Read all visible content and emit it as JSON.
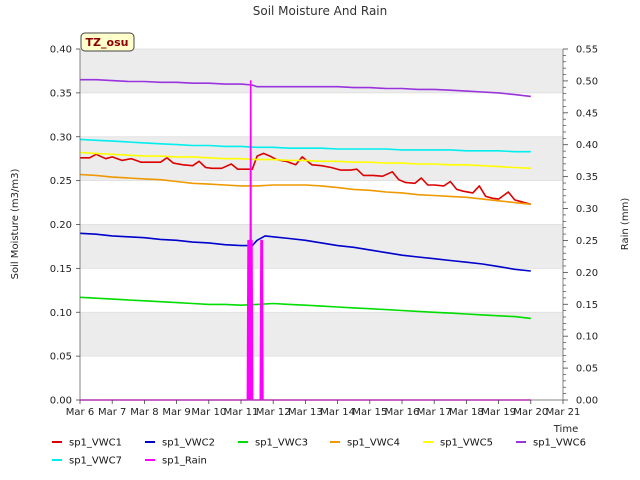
{
  "chart_data": {
    "type": "line",
    "title": "Soil Moisture And Rain",
    "badge": "TZ_osu",
    "xlabel": "Time",
    "ylabel": "Soil Moisture (m3/m3)",
    "y2label": "Rain (mm)",
    "xlim": [
      6,
      21
    ],
    "ylim": [
      0,
      0.4
    ],
    "y2lim": [
      0,
      0.55
    ],
    "x_ticks": [
      6,
      7,
      8,
      9,
      10,
      11,
      12,
      13,
      14,
      15,
      16,
      17,
      18,
      19,
      20,
      21
    ],
    "x_tick_labels": [
      "Mar 6",
      "Mar 7",
      "Mar 8",
      "Mar 9",
      "Mar 10",
      "Mar 11",
      "Mar 12",
      "Mar 13",
      "Mar 14",
      "Mar 15",
      "Mar 16",
      "Mar 17",
      "Mar 18",
      "Mar 19",
      "Mar 20",
      "Mar 21"
    ],
    "y_ticks": [
      0.0,
      0.05,
      0.1,
      0.15,
      0.2,
      0.25,
      0.3,
      0.35,
      0.4
    ],
    "y_tick_labels": [
      "0.00",
      "0.05",
      "0.10",
      "0.15",
      "0.20",
      "0.25",
      "0.30",
      "0.35",
      "0.40"
    ],
    "y2_ticks": [
      0.0,
      0.05,
      0.1,
      0.15,
      0.2,
      0.25,
      0.3,
      0.35,
      0.4,
      0.45,
      0.5,
      0.55
    ],
    "y2_tick_labels": [
      "0.00",
      "0.05",
      "0.10",
      "0.15",
      "0.20",
      "0.25",
      "0.30",
      "0.35",
      "0.40",
      "0.45",
      "0.50",
      "0.55"
    ],
    "grid": "horizontal bands",
    "legend_position": "bottom",
    "series": [
      {
        "name": "sp1_VWC1",
        "color": "#dd0000",
        "axis": "left",
        "x": [
          6.0,
          6.3,
          6.5,
          6.8,
          7.0,
          7.3,
          7.6,
          7.9,
          8.2,
          8.5,
          8.7,
          8.9,
          9.2,
          9.5,
          9.7,
          9.9,
          10.1,
          10.4,
          10.7,
          10.9,
          11.1,
          11.35,
          11.5,
          11.7,
          11.9,
          12.1,
          12.4,
          12.7,
          12.9,
          13.2,
          13.5,
          13.8,
          14.1,
          14.4,
          14.6,
          14.8,
          15.1,
          15.4,
          15.7,
          15.9,
          16.1,
          16.4,
          16.6,
          16.8,
          17.0,
          17.3,
          17.5,
          17.7,
          17.9,
          18.2,
          18.4,
          18.6,
          18.8,
          19.0,
          19.3,
          19.5,
          19.7,
          19.9,
          20.0
        ],
        "y": [
          0.276,
          0.276,
          0.28,
          0.275,
          0.277,
          0.273,
          0.275,
          0.271,
          0.271,
          0.271,
          0.276,
          0.27,
          0.268,
          0.267,
          0.272,
          0.265,
          0.264,
          0.264,
          0.269,
          0.263,
          0.263,
          0.263,
          0.278,
          0.281,
          0.278,
          0.274,
          0.272,
          0.268,
          0.277,
          0.268,
          0.267,
          0.265,
          0.262,
          0.262,
          0.263,
          0.256,
          0.256,
          0.255,
          0.26,
          0.251,
          0.248,
          0.247,
          0.253,
          0.245,
          0.245,
          0.244,
          0.249,
          0.24,
          0.238,
          0.236,
          0.244,
          0.232,
          0.23,
          0.229,
          0.237,
          0.228,
          0.226,
          0.224,
          0.223
        ]
      },
      {
        "name": "sp1_VWC2",
        "color": "#0000cc",
        "axis": "left",
        "x": [
          6.0,
          6.5,
          7.0,
          7.5,
          8.0,
          8.5,
          9.0,
          9.5,
          10.0,
          10.5,
          11.0,
          11.35,
          11.5,
          11.75,
          12.0,
          12.5,
          13.0,
          13.5,
          14.0,
          14.5,
          15.0,
          15.5,
          16.0,
          16.5,
          17.0,
          17.5,
          18.0,
          18.5,
          19.0,
          19.5,
          20.0
        ],
        "y": [
          0.19,
          0.189,
          0.187,
          0.186,
          0.185,
          0.183,
          0.182,
          0.18,
          0.179,
          0.177,
          0.176,
          0.176,
          0.182,
          0.187,
          0.186,
          0.184,
          0.182,
          0.179,
          0.176,
          0.174,
          0.171,
          0.168,
          0.165,
          0.163,
          0.161,
          0.159,
          0.157,
          0.155,
          0.152,
          0.149,
          0.147
        ]
      },
      {
        "name": "sp1_VWC3",
        "color": "#00dd00",
        "axis": "left",
        "x": [
          6.0,
          6.5,
          7.0,
          7.5,
          8.0,
          8.5,
          9.0,
          9.5,
          10.0,
          10.5,
          11.0,
          11.5,
          12.0,
          12.5,
          13.0,
          13.5,
          14.0,
          14.5,
          15.0,
          15.5,
          16.0,
          16.5,
          17.0,
          17.5,
          18.0,
          18.5,
          19.0,
          19.5,
          20.0
        ],
        "y": [
          0.117,
          0.116,
          0.115,
          0.114,
          0.113,
          0.112,
          0.111,
          0.11,
          0.109,
          0.109,
          0.108,
          0.109,
          0.11,
          0.109,
          0.108,
          0.107,
          0.106,
          0.105,
          0.104,
          0.103,
          0.102,
          0.101,
          0.1,
          0.099,
          0.098,
          0.097,
          0.096,
          0.095,
          0.093
        ]
      },
      {
        "name": "sp1_VWC4",
        "color": "#ee9900",
        "axis": "left",
        "x": [
          6.0,
          6.5,
          7.0,
          7.5,
          8.0,
          8.5,
          9.0,
          9.5,
          10.0,
          10.5,
          11.0,
          11.5,
          12.0,
          12.5,
          13.0,
          13.5,
          14.0,
          14.5,
          15.0,
          15.5,
          16.0,
          16.5,
          17.0,
          17.5,
          18.0,
          18.5,
          19.0,
          19.5,
          20.0
        ],
        "y": [
          0.257,
          0.256,
          0.254,
          0.253,
          0.252,
          0.251,
          0.249,
          0.247,
          0.246,
          0.245,
          0.244,
          0.244,
          0.245,
          0.245,
          0.245,
          0.244,
          0.242,
          0.24,
          0.239,
          0.237,
          0.236,
          0.234,
          0.233,
          0.232,
          0.231,
          0.229,
          0.227,
          0.225,
          0.223
        ]
      },
      {
        "name": "sp1_VWC5",
        "color": "#ffff00",
        "axis": "left",
        "x": [
          6.0,
          6.5,
          7.0,
          7.5,
          8.0,
          8.5,
          9.0,
          9.5,
          10.0,
          10.5,
          11.0,
          11.5,
          12.0,
          12.5,
          13.0,
          13.5,
          14.0,
          14.5,
          15.0,
          15.5,
          16.0,
          16.5,
          17.0,
          17.5,
          18.0,
          18.5,
          19.0,
          19.5,
          20.0
        ],
        "y": [
          0.282,
          0.281,
          0.28,
          0.279,
          0.278,
          0.278,
          0.277,
          0.277,
          0.276,
          0.275,
          0.275,
          0.274,
          0.274,
          0.273,
          0.273,
          0.272,
          0.272,
          0.271,
          0.271,
          0.27,
          0.27,
          0.269,
          0.269,
          0.268,
          0.268,
          0.267,
          0.266,
          0.265,
          0.264
        ]
      },
      {
        "name": "sp1_VWC6",
        "color": "#9933dd",
        "axis": "left",
        "x": [
          6.0,
          6.5,
          7.0,
          7.5,
          8.0,
          8.5,
          9.0,
          9.5,
          10.0,
          10.5,
          11.0,
          11.35,
          11.5,
          12.0,
          12.5,
          13.0,
          13.5,
          14.0,
          14.5,
          15.0,
          15.5,
          16.0,
          16.5,
          17.0,
          17.5,
          18.0,
          18.5,
          19.0,
          19.5,
          20.0
        ],
        "y": [
          0.365,
          0.365,
          0.364,
          0.363,
          0.363,
          0.362,
          0.362,
          0.361,
          0.361,
          0.36,
          0.36,
          0.359,
          0.357,
          0.357,
          0.357,
          0.357,
          0.357,
          0.357,
          0.356,
          0.356,
          0.355,
          0.355,
          0.354,
          0.354,
          0.353,
          0.352,
          0.351,
          0.35,
          0.348,
          0.346
        ]
      },
      {
        "name": "sp1_VWC7",
        "color": "#00eeee",
        "axis": "left",
        "x": [
          6.0,
          6.5,
          7.0,
          7.5,
          8.0,
          8.5,
          9.0,
          9.5,
          10.0,
          10.5,
          11.0,
          11.5,
          12.0,
          12.5,
          13.0,
          13.5,
          14.0,
          14.5,
          15.0,
          15.5,
          16.0,
          16.5,
          17.0,
          17.5,
          18.0,
          18.5,
          19.0,
          19.5,
          20.0
        ],
        "y": [
          0.297,
          0.296,
          0.295,
          0.294,
          0.293,
          0.292,
          0.291,
          0.29,
          0.29,
          0.289,
          0.289,
          0.288,
          0.288,
          0.287,
          0.287,
          0.287,
          0.286,
          0.286,
          0.286,
          0.286,
          0.285,
          0.285,
          0.285,
          0.285,
          0.284,
          0.284,
          0.284,
          0.283,
          0.283
        ]
      },
      {
        "name": "sp1_Rain",
        "color": "#ff00ff",
        "axis": "right",
        "x": [
          6.0,
          11.2,
          11.22,
          11.24,
          11.26,
          11.28,
          11.3,
          11.32,
          11.34,
          11.36,
          11.6,
          11.62,
          11.64,
          11.66,
          11.68,
          11.7,
          20.0
        ],
        "y": [
          0.0,
          0.0,
          0.25,
          0.0,
          0.25,
          0.0,
          0.5,
          0.0,
          0.25,
          0.0,
          0.0,
          0.25,
          0.0,
          0.25,
          0.0,
          0.0,
          0.0
        ]
      }
    ]
  }
}
